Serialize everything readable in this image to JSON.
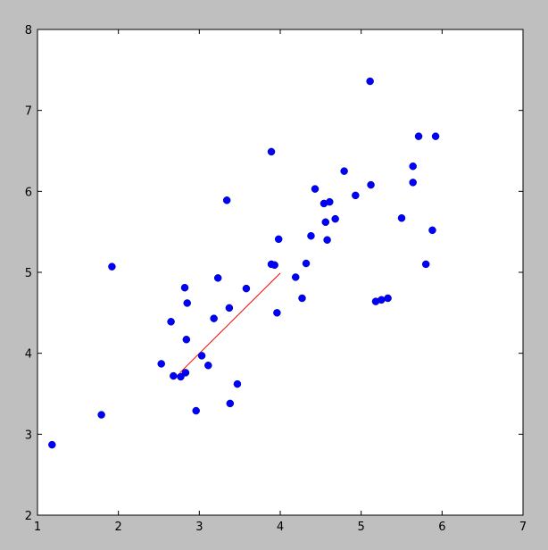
{
  "chart_data": {
    "type": "scatter",
    "title": "",
    "xlabel": "",
    "ylabel": "",
    "xlim": [
      1,
      7
    ],
    "ylim": [
      2,
      8
    ],
    "xticks": [
      "1",
      "2",
      "3",
      "4",
      "5",
      "6",
      "7"
    ],
    "yticks": [
      "2",
      "3",
      "4",
      "5",
      "6",
      "7",
      "8"
    ],
    "grid": false,
    "colors": {
      "points": "#0000ff",
      "line": "#ff0000",
      "background": "#bfbfbf",
      "plot_area": "#ffffff"
    },
    "points": [
      [
        1.18,
        2.87
      ],
      [
        1.79,
        3.24
      ],
      [
        1.92,
        5.07
      ],
      [
        2.53,
        3.87
      ],
      [
        2.65,
        4.39
      ],
      [
        2.68,
        3.72
      ],
      [
        2.77,
        3.71
      ],
      [
        2.82,
        4.81
      ],
      [
        2.83,
        3.76
      ],
      [
        2.84,
        4.17
      ],
      [
        2.85,
        4.62
      ],
      [
        2.96,
        3.29
      ],
      [
        3.03,
        3.97
      ],
      [
        3.11,
        3.85
      ],
      [
        3.18,
        4.43
      ],
      [
        3.23,
        4.93
      ],
      [
        3.34,
        5.89
      ],
      [
        3.37,
        4.56
      ],
      [
        3.38,
        3.38
      ],
      [
        3.47,
        3.62
      ],
      [
        3.58,
        4.8
      ],
      [
        3.89,
        6.49
      ],
      [
        3.89,
        5.1
      ],
      [
        3.93,
        5.09
      ],
      [
        3.96,
        4.5
      ],
      [
        3.98,
        5.41
      ],
      [
        4.19,
        4.94
      ],
      [
        4.27,
        4.68
      ],
      [
        4.32,
        5.11
      ],
      [
        4.38,
        5.45
      ],
      [
        4.43,
        6.03
      ],
      [
        4.54,
        5.85
      ],
      [
        4.56,
        5.62
      ],
      [
        4.58,
        5.4
      ],
      [
        4.61,
        5.87
      ],
      [
        4.68,
        5.66
      ],
      [
        4.79,
        6.25
      ],
      [
        4.93,
        5.95
      ],
      [
        5.11,
        7.36
      ],
      [
        5.12,
        6.08
      ],
      [
        5.18,
        4.64
      ],
      [
        5.25,
        4.66
      ],
      [
        5.33,
        4.68
      ],
      [
        5.5,
        5.67
      ],
      [
        5.64,
        6.31
      ],
      [
        5.64,
        6.11
      ],
      [
        5.71,
        6.68
      ],
      [
        5.8,
        5.1
      ],
      [
        5.88,
        5.52
      ],
      [
        5.92,
        6.68
      ]
    ],
    "line": [
      [
        2.76,
        3.76
      ],
      [
        4.0,
        4.99
      ]
    ]
  }
}
